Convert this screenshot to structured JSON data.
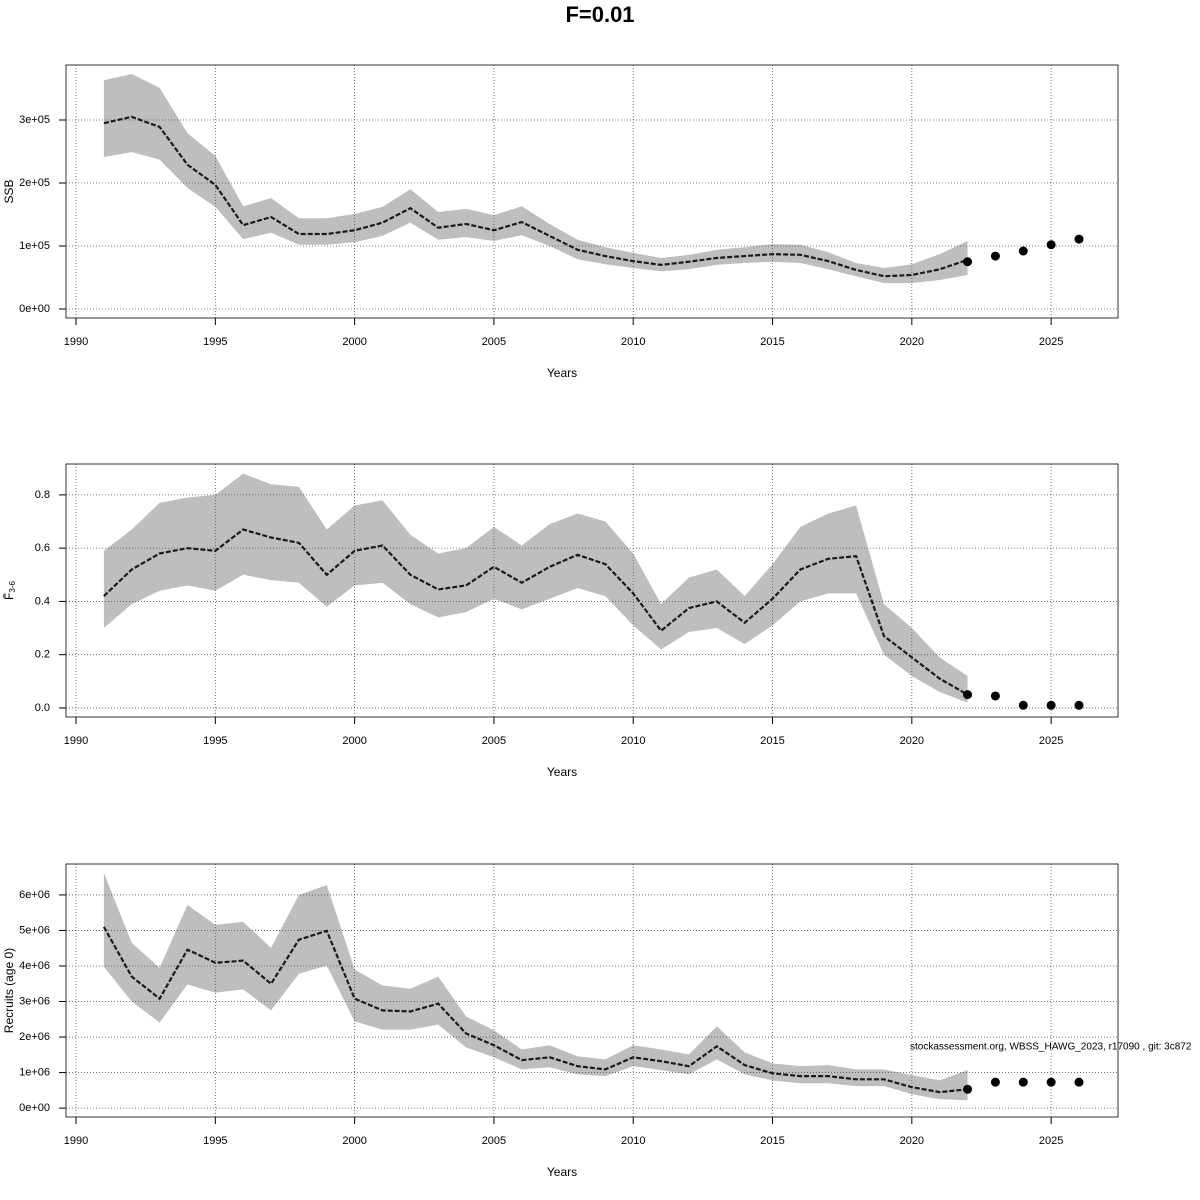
{
  "title": "F=0.01",
  "footnote": "stockassessment.org, WBSS_HAWG_2023, r17090 , git: 3c872",
  "chart_data": [
    {
      "type": "line",
      "ylabel": "SSB",
      "xlabel": "Years",
      "band_color": "#bebebe",
      "line_color": "#1a1a1a",
      "grid": true,
      "xlim": [
        1989.64,
        2027.4
      ],
      "xticks": [
        1990,
        1995,
        2000,
        2005,
        2010,
        2015,
        2020,
        2025
      ],
      "ylim": [
        -14300,
        387300
      ],
      "yticks": [
        {
          "value": 0,
          "label": "0e+00"
        },
        {
          "value": 100000,
          "label": "1e+05"
        },
        {
          "value": 200000,
          "label": "2e+05"
        },
        {
          "value": 300000,
          "label": "3e+05"
        }
      ],
      "x": [
        1991,
        1992,
        1993,
        1994,
        1995,
        1996,
        1997,
        1998,
        1999,
        2000,
        2001,
        2002,
        2003,
        2004,
        2005,
        2006,
        2007,
        2008,
        2009,
        2010,
        2011,
        2012,
        2013,
        2014,
        2015,
        2016,
        2017,
        2018,
        2019,
        2020,
        2021,
        2022
      ],
      "values": [
        295000,
        305000,
        289000,
        229000,
        197000,
        133000,
        146000,
        119000,
        119000,
        125000,
        137000,
        160000,
        129000,
        135000,
        125000,
        138000,
        116000,
        94000,
        84000,
        76000,
        70000,
        75000,
        81000,
        84000,
        87000,
        86000,
        76000,
        62000,
        52000,
        54000,
        63000,
        78000
      ],
      "upper": [
        363000,
        373000,
        351000,
        279000,
        243000,
        163000,
        176000,
        144000,
        144000,
        151000,
        162000,
        190000,
        154000,
        159000,
        149000,
        163000,
        135000,
        110000,
        98000,
        89000,
        81000,
        86000,
        94000,
        98000,
        103000,
        102000,
        90000,
        73000,
        65000,
        71000,
        87000,
        108000
      ],
      "lower": [
        241000,
        249000,
        237000,
        192000,
        162000,
        111000,
        121000,
        102000,
        102000,
        106000,
        116000,
        137000,
        110000,
        114000,
        108000,
        117000,
        100000,
        79000,
        71000,
        65000,
        60000,
        63000,
        70000,
        73000,
        75000,
        73000,
        63000,
        52000,
        41000,
        41000,
        46000,
        54000
      ],
      "points": {
        "x": [
          2022,
          2023,
          2024,
          2025,
          2026
        ],
        "values": [
          75000,
          84000,
          92000,
          102000,
          111000
        ]
      }
    },
    {
      "type": "line",
      "ylabel": "F̄",
      "ylabel_subscript": "3-6",
      "xlabel": "Years",
      "band_color": "#bebebe",
      "line_color": "#1a1a1a",
      "grid": true,
      "xlim": [
        1989.64,
        2027.4
      ],
      "xticks": [
        1990,
        1995,
        2000,
        2005,
        2010,
        2015,
        2020,
        2025
      ],
      "ylim": [
        -0.034,
        0.916
      ],
      "yticks": [
        {
          "value": 0,
          "label": "0.0"
        },
        0.2,
        0.4,
        0.6,
        0.8
      ],
      "x": [
        1991,
        1992,
        1993,
        1994,
        1995,
        1996,
        1997,
        1998,
        1999,
        2000,
        2001,
        2002,
        2003,
        2004,
        2005,
        2006,
        2007,
        2008,
        2009,
        2010,
        2011,
        2012,
        2013,
        2014,
        2015,
        2016,
        2017,
        2018,
        2019,
        2020,
        2021,
        2022
      ],
      "values": [
        0.42,
        0.52,
        0.58,
        0.6,
        0.59,
        0.67,
        0.64,
        0.62,
        0.5,
        0.59,
        0.61,
        0.5,
        0.445,
        0.46,
        0.53,
        0.47,
        0.53,
        0.575,
        0.54,
        0.43,
        0.29,
        0.375,
        0.4,
        0.32,
        0.41,
        0.52,
        0.56,
        0.57,
        0.27,
        0.19,
        0.11,
        0.05
      ],
      "upper": [
        0.59,
        0.67,
        0.77,
        0.79,
        0.8,
        0.88,
        0.84,
        0.83,
        0.67,
        0.76,
        0.78,
        0.65,
        0.58,
        0.6,
        0.68,
        0.61,
        0.69,
        0.73,
        0.7,
        0.58,
        0.39,
        0.49,
        0.52,
        0.42,
        0.54,
        0.68,
        0.73,
        0.76,
        0.39,
        0.3,
        0.19,
        0.12
      ],
      "lower": [
        0.3,
        0.39,
        0.44,
        0.46,
        0.44,
        0.5,
        0.48,
        0.47,
        0.38,
        0.46,
        0.47,
        0.39,
        0.34,
        0.36,
        0.41,
        0.37,
        0.41,
        0.45,
        0.42,
        0.31,
        0.22,
        0.285,
        0.3,
        0.24,
        0.31,
        0.4,
        0.43,
        0.43,
        0.2,
        0.12,
        0.06,
        0.02
      ],
      "points": {
        "x": [
          2022,
          2023,
          2024,
          2025,
          2026
        ],
        "values": [
          0.05,
          0.045,
          0.01,
          0.01,
          0.01
        ]
      }
    },
    {
      "type": "line",
      "ylabel": "Recruits (age 0)",
      "xlabel": "Years",
      "band_color": "#bebebe",
      "line_color": "#1a1a1a",
      "grid": true,
      "xlim": [
        1989.64,
        2027.4
      ],
      "xticks": [
        1990,
        1995,
        2000,
        2005,
        2010,
        2015,
        2020,
        2025
      ],
      "ylim": [
        -250000,
        6870000
      ],
      "yticks": [
        {
          "value": 0,
          "label": "0e+00"
        },
        {
          "value": 1000000,
          "label": "1e+06"
        },
        {
          "value": 2000000,
          "label": "2e+06"
        },
        {
          "value": 3000000,
          "label": "3e+06"
        },
        {
          "value": 4000000,
          "label": "4e+06"
        },
        {
          "value": 5000000,
          "label": "5e+06"
        },
        {
          "value": 6000000,
          "label": "6e+06"
        }
      ],
      "x": [
        1991,
        1992,
        1993,
        1994,
        1995,
        1996,
        1997,
        1998,
        1999,
        2000,
        2001,
        2002,
        2003,
        2004,
        2005,
        2006,
        2007,
        2008,
        2009,
        2010,
        2011,
        2012,
        2013,
        2014,
        2015,
        2016,
        2017,
        2018,
        2019,
        2020,
        2021,
        2022
      ],
      "values": [
        5100000,
        3700000,
        3080000,
        4460000,
        4090000,
        4150000,
        3500000,
        4740000,
        4990000,
        3080000,
        2750000,
        2720000,
        2940000,
        2100000,
        1770000,
        1350000,
        1430000,
        1180000,
        1090000,
        1430000,
        1320000,
        1180000,
        1740000,
        1210000,
        980000,
        900000,
        900000,
        810000,
        810000,
        590000,
        450000,
        530000
      ],
      "upper": [
        6620000,
        4650000,
        3950000,
        5720000,
        5160000,
        5240000,
        4510000,
        6000000,
        6280000,
        3900000,
        3450000,
        3360000,
        3700000,
        2580000,
        2190000,
        1650000,
        1770000,
        1460000,
        1370000,
        1770000,
        1650000,
        1510000,
        2300000,
        1570000,
        1260000,
        1180000,
        1210000,
        1090000,
        1090000,
        930000,
        780000,
        1070000
      ],
      "lower": [
        3980000,
        3000000,
        2410000,
        3480000,
        3250000,
        3340000,
        2750000,
        3780000,
        4010000,
        2440000,
        2210000,
        2210000,
        2350000,
        1710000,
        1430000,
        1090000,
        1150000,
        950000,
        900000,
        1180000,
        1070000,
        950000,
        1370000,
        950000,
        780000,
        700000,
        700000,
        620000,
        620000,
        390000,
        250000,
        220000
      ],
      "points": {
        "x": [
          2022,
          2023,
          2024,
          2025,
          2026
        ],
        "values": [
          530000,
          730000,
          730000,
          730000,
          730000
        ]
      }
    }
  ]
}
